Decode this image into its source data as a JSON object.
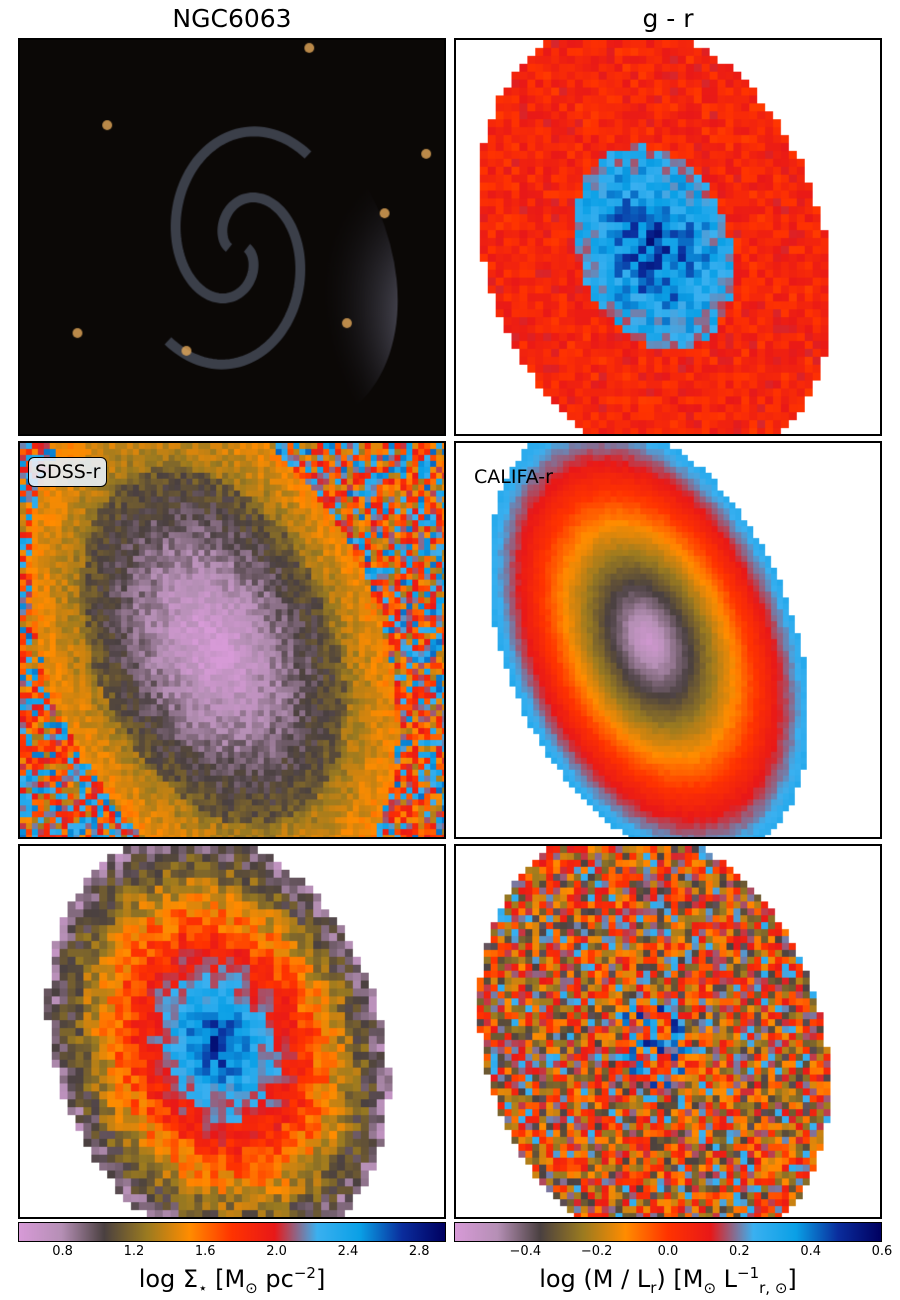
{
  "titles": {
    "left": "NGC6063",
    "right": "g - r"
  },
  "panels": {
    "image": {
      "kind": "galaxy-photo"
    },
    "gr_map": {
      "kind": "color-map"
    },
    "sdss_r": {
      "label": "SDSS-r"
    },
    "califa_r": {
      "label": "CALIFA-r"
    },
    "mass_density": {
      "kind": "stellar-mass-map"
    },
    "mass_to_light": {
      "kind": "mass-to-light-map"
    }
  },
  "colorbars": {
    "left": {
      "ticks": [
        "0.8",
        "1.2",
        "1.6",
        "2.0",
        "2.4",
        "2.8"
      ],
      "range": [
        0.55,
        2.95
      ],
      "label_main": "log Σ",
      "label_sub": "⋆",
      "label_rest": " [M",
      "label_sun": "⊙",
      "label_unit": " pc",
      "label_exp": "−2",
      "label_end": "]"
    },
    "right": {
      "ticks": [
        "−0.4",
        "−0.2",
        "0.0",
        "0.2",
        "0.4",
        "0.6"
      ],
      "range": [
        -0.6,
        0.6
      ],
      "label_main": "log (M / L",
      "label_sub": "r",
      "label_mid": ") [M",
      "label_sun": "⊙",
      "label_unit": " L",
      "label_exp": "−1",
      "label_sub2": "r, ⊙",
      "label_end": "]"
    }
  },
  "colors": {
    "stops": [
      "#d79ad7",
      "#b58fb5",
      "#4a4040",
      "#9a7a20",
      "#ff8c00",
      "#ff3300",
      "#e81818",
      "#3ab0f0",
      "#0aa0e6",
      "#0a2c9c",
      "#000060"
    ]
  }
}
